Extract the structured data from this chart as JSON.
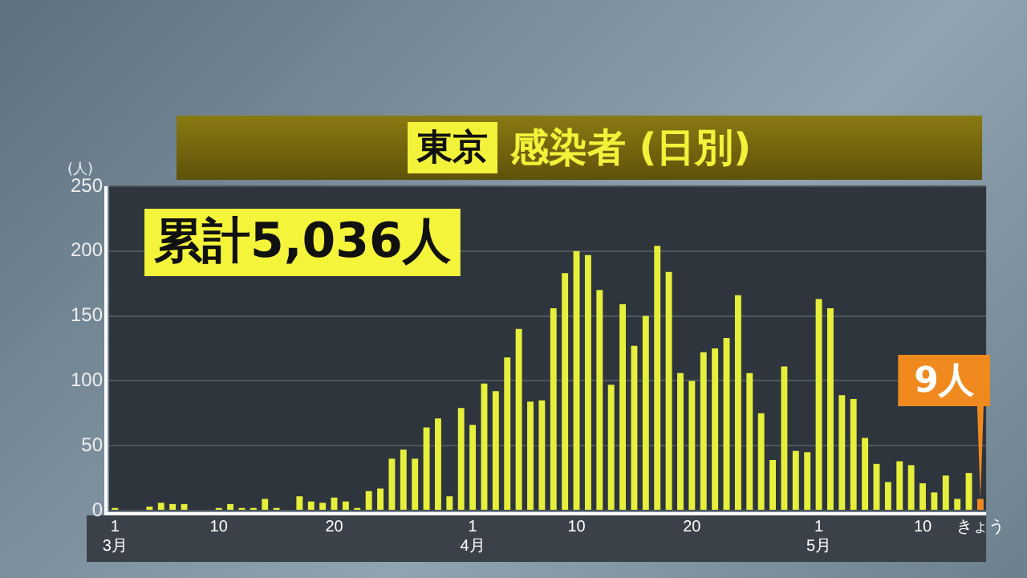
{
  "chart_data": {
    "type": "bar",
    "title": "東京",
    "subtitle": "感染者 (日別)",
    "ylabel": "(人)",
    "categories": [
      "1\n3月",
      null,
      null,
      null,
      null,
      null,
      null,
      null,
      null,
      "10",
      null,
      null,
      null,
      null,
      null,
      null,
      null,
      null,
      null,
      "20",
      null,
      null,
      null,
      null,
      null,
      null,
      null,
      null,
      null,
      null,
      null,
      "1\n4月",
      null,
      null,
      null,
      null,
      null,
      null,
      null,
      null,
      "10",
      null,
      null,
      null,
      null,
      null,
      null,
      null,
      null,
      null,
      "20",
      null,
      null,
      null,
      null,
      null,
      null,
      null,
      null,
      null,
      null,
      "1\n5月",
      null,
      null,
      null,
      null,
      null,
      null,
      null,
      null,
      "10",
      null,
      null,
      null,
      null,
      "きょう"
    ],
    "values": [
      2,
      0,
      0,
      3,
      6,
      5,
      5,
      0,
      0,
      2,
      5,
      2,
      2,
      9,
      2,
      0,
      11,
      7,
      6,
      10,
      7,
      2,
      15,
      17,
      40,
      47,
      40,
      64,
      71,
      11,
      79,
      66,
      98,
      92,
      118,
      140,
      84,
      85,
      156,
      183,
      200,
      197,
      170,
      97,
      159,
      127,
      150,
      204,
      184,
      106,
      100,
      122,
      125,
      133,
      166,
      106,
      75,
      39,
      111,
      46,
      45,
      163,
      156,
      89,
      86,
      56,
      36,
      22,
      38,
      35,
      21,
      14,
      27,
      9,
      29,
      9
    ],
    "colors": [
      "#e6ef3a",
      "#e6ef3a",
      "#e6ef3a",
      "#e6ef3a",
      "#e6ef3a",
      "#e6ef3a",
      "#e6ef3a",
      "#e6ef3a",
      "#e6ef3a",
      "#e6ef3a",
      "#e6ef3a",
      "#e6ef3a",
      "#e6ef3a",
      "#e6ef3a",
      "#e6ef3a",
      "#e6ef3a",
      "#e6ef3a",
      "#e6ef3a",
      "#e6ef3a",
      "#e6ef3a",
      "#e6ef3a",
      "#e6ef3a",
      "#e6ef3a",
      "#e6ef3a",
      "#e6ef3a",
      "#e6ef3a",
      "#e6ef3a",
      "#e6ef3a",
      "#e6ef3a",
      "#e6ef3a",
      "#e6ef3a",
      "#e6ef3a",
      "#e6ef3a",
      "#e6ef3a",
      "#e6ef3a",
      "#e6ef3a",
      "#e6ef3a",
      "#e6ef3a",
      "#e6ef3a",
      "#e6ef3a",
      "#e6ef3a",
      "#e6ef3a",
      "#e6ef3a",
      "#e6ef3a",
      "#e6ef3a",
      "#e6ef3a",
      "#e6ef3a",
      "#e6ef3a",
      "#e6ef3a",
      "#e6ef3a",
      "#e6ef3a",
      "#e6ef3a",
      "#e6ef3a",
      "#e6ef3a",
      "#e6ef3a",
      "#e6ef3a",
      "#e6ef3a",
      "#e6ef3a",
      "#e6ef3a",
      "#e6ef3a",
      "#e6ef3a",
      "#e6ef3a",
      "#e6ef3a",
      "#e6ef3a",
      "#e6ef3a",
      "#e6ef3a",
      "#e6ef3a",
      "#e6ef3a",
      "#e6ef3a",
      "#e6ef3a",
      "#e6ef3a",
      "#e6ef3a",
      "#e6ef3a",
      "#e6ef3a",
      "#e6ef3a",
      "#f08a1e"
    ],
    "ylim": [
      0,
      250
    ],
    "yticks": [
      0,
      50,
      100,
      150,
      200,
      250
    ],
    "grid": "y",
    "legend": false,
    "annotations": [
      "累計5,036人",
      {
        "text": "9人",
        "x": "きょう",
        "y": 9
      }
    ]
  }
}
